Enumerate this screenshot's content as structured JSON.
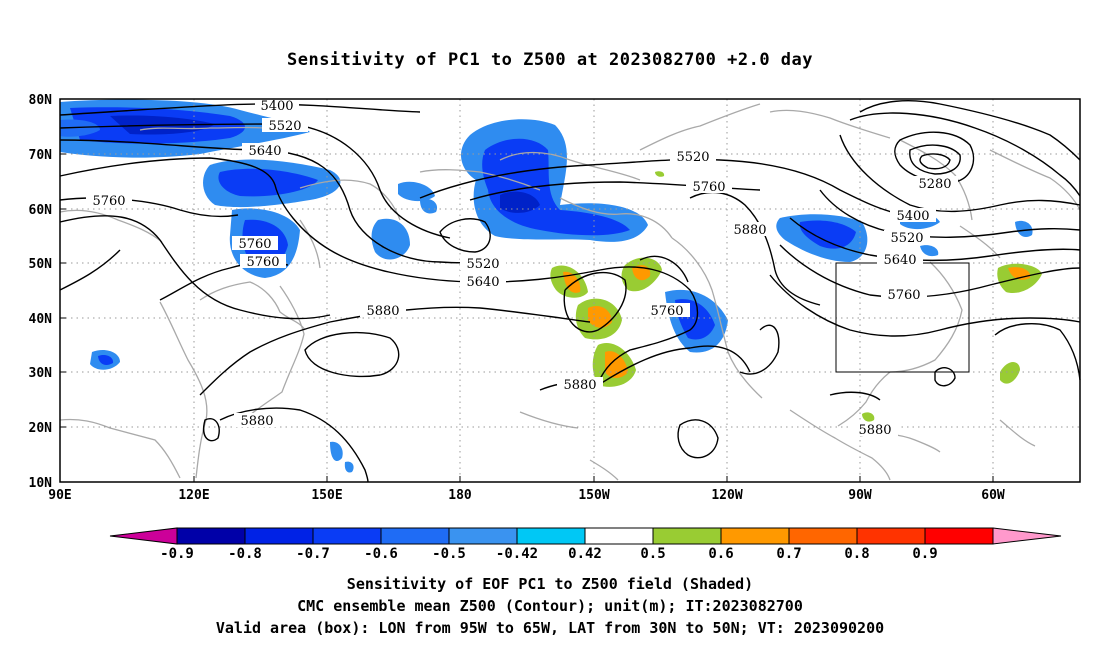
{
  "title": "Sensitivity of PC1 to Z500 at 2023082700 +2.0 day",
  "lat_labels": [
    "80N",
    "70N",
    "60N",
    "50N",
    "40N",
    "30N",
    "20N",
    "10N"
  ],
  "lon_labels": [
    "90E",
    "120E",
    "150E",
    "180",
    "150W",
    "120W",
    "90W",
    "60W"
  ],
  "contour_labels": {
    "5400_a": "5400",
    "5520_a": "5520",
    "5640_a": "5640",
    "5760_a": "5760",
    "5760_b": "5760",
    "5760_c": "5760",
    "5520_b": "5520",
    "5760_d": "5760",
    "5880_a": "5880",
    "5520_c": "5520",
    "5640_b": "5640",
    "5880_b": "5880",
    "5760_e": "5760",
    "5880_c": "5880",
    "5880_d": "5880",
    "5280": "5280",
    "5400_b": "5400",
    "5520_d": "5520",
    "5640_c": "5640",
    "5760_f": "5760",
    "5880_e": "5880"
  },
  "colorbar": {
    "labels": [
      "-0.9",
      "-0.8",
      "-0.7",
      "-0.6",
      "-0.5",
      "-0.42",
      "0.42",
      "0.5",
      "0.6",
      "0.7",
      "0.8",
      "0.9"
    ],
    "colors": [
      "#cc0099",
      "#0000a8",
      "#0022e6",
      "#0a3cf5",
      "#1f6cf5",
      "#3a93f0",
      "#00c8f5",
      "#ffffff",
      "#99cc33",
      "#ff9900",
      "#ff6600",
      "#ff3300",
      "#ff0000",
      "#ff99cc"
    ]
  },
  "valid_box": {
    "lon_min": "95W",
    "lon_max": "65W",
    "lat_min": "30N",
    "lat_max": "50N"
  },
  "caption": {
    "line1": "Sensitivity of EOF PC1 to Z500 field (Shaded)",
    "line2": "CMC ensemble mean Z500 (Contour); unit(m); IT:2023082700",
    "line3": "Valid area (box): LON from 95W to 65W, LAT from 30N to 50N; VT: 2023090200"
  }
}
